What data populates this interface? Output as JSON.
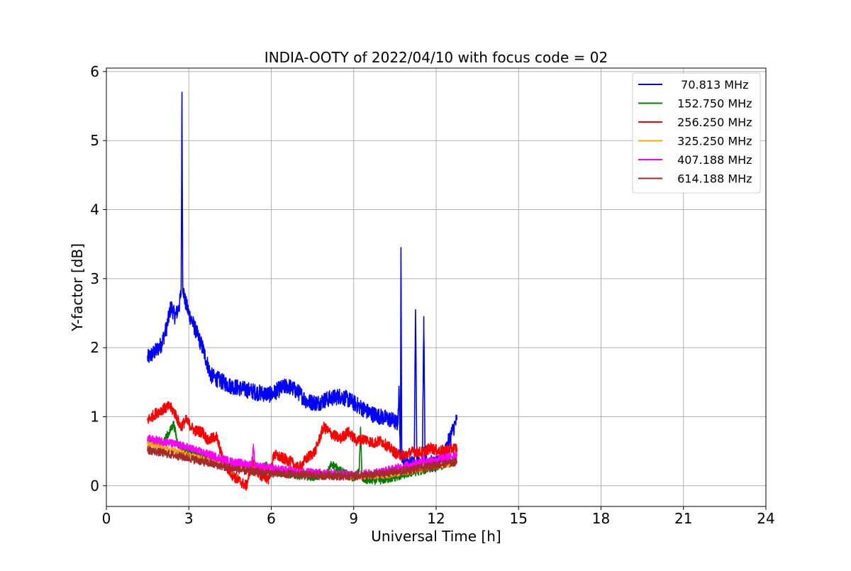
{
  "chart_data": {
    "type": "line",
    "title": "INDIA-OOTY of 2022/04/10 with focus code = 02",
    "xlabel": "Universal Time [h]",
    "ylabel": "Y-factor [dB]",
    "xlim": [
      0,
      24
    ],
    "ylim": [
      -0.3,
      6.05
    ],
    "xticks": [
      0,
      3,
      6,
      9,
      12,
      15,
      18,
      21,
      24
    ],
    "xtick_labels": [
      "0",
      "3",
      "6",
      "9",
      "12",
      "15",
      "18",
      "21",
      "24"
    ],
    "yticks": [
      0,
      1,
      2,
      3,
      4,
      5,
      6
    ],
    "ytick_labels": [
      "0",
      "1",
      "2",
      "3",
      "4",
      "5",
      "6"
    ],
    "grid": true,
    "legend_position": "top-right",
    "series": [
      {
        "name": "  70.813 MHz",
        "color": "#0000ff",
        "band": 0.12,
        "x": [
          1.5,
          1.8,
          2.0,
          2.2,
          2.35,
          2.5,
          2.65,
          2.72,
          2.75,
          2.78,
          2.85,
          3.0,
          3.3,
          3.5,
          3.8,
          4.0,
          4.5,
          5.0,
          5.5,
          6.0,
          6.3,
          6.6,
          7.0,
          7.3,
          7.7,
          8.0,
          8.5,
          8.8,
          9.2,
          9.6,
          10.0,
          10.4,
          10.6,
          10.65,
          10.7,
          10.72,
          10.75,
          10.9,
          11.2,
          11.25,
          11.3,
          11.5,
          11.55,
          11.6,
          12.0,
          12.3,
          12.5,
          12.75
        ],
        "y": [
          1.85,
          1.95,
          2.05,
          2.3,
          2.6,
          2.45,
          2.6,
          2.8,
          5.7,
          2.9,
          2.7,
          2.5,
          2.2,
          2.0,
          1.6,
          1.55,
          1.45,
          1.4,
          1.35,
          1.32,
          1.4,
          1.45,
          1.35,
          1.22,
          1.2,
          1.25,
          1.3,
          1.25,
          1.15,
          1.05,
          1.0,
          0.95,
          0.9,
          1.4,
          0.4,
          3.45,
          0.45,
          0.35,
          0.3,
          2.55,
          0.35,
          0.3,
          2.45,
          0.35,
          0.3,
          0.45,
          0.7,
          0.95
        ]
      },
      {
        "name": " 152.750 MHz",
        "color": "#008000",
        "band": 0.06,
        "x": [
          1.5,
          2.0,
          2.3,
          2.45,
          2.6,
          3.0,
          3.5,
          4.0,
          4.5,
          5.0,
          5.5,
          5.8,
          6.0,
          6.5,
          7.0,
          7.5,
          8.0,
          8.2,
          8.5,
          9.0,
          9.2,
          9.25,
          9.3,
          9.5,
          10.0,
          10.5,
          11.0,
          11.5,
          12.0,
          12.5,
          12.75
        ],
        "y": [
          0.65,
          0.6,
          0.78,
          0.9,
          0.6,
          0.5,
          0.42,
          0.35,
          0.28,
          0.25,
          0.22,
          0.3,
          0.2,
          0.18,
          0.15,
          0.13,
          0.15,
          0.32,
          0.22,
          0.12,
          0.2,
          0.85,
          0.1,
          0.08,
          0.08,
          0.12,
          0.18,
          0.22,
          0.28,
          0.32,
          0.35
        ]
      },
      {
        "name": " 256.250 MHz",
        "color": "#ff0000",
        "band": 0.08,
        "x": [
          1.5,
          1.8,
          2.0,
          2.3,
          2.5,
          2.7,
          2.9,
          3.2,
          3.5,
          3.7,
          4.0,
          4.3,
          4.6,
          4.9,
          5.1,
          5.3,
          5.6,
          5.9,
          6.1,
          6.4,
          6.7,
          7.0,
          7.3,
          7.6,
          7.9,
          8.2,
          8.5,
          8.8,
          9.1,
          9.4,
          9.7,
          10.0,
          10.3,
          10.6,
          10.9,
          11.2,
          11.5,
          11.8,
          12.1,
          12.4,
          12.75
        ],
        "y": [
          0.95,
          1.05,
          1.1,
          1.15,
          1.05,
          0.85,
          0.95,
          0.8,
          0.78,
          0.65,
          0.72,
          0.3,
          0.15,
          0.05,
          0.0,
          0.35,
          0.15,
          0.1,
          0.45,
          0.4,
          0.35,
          0.25,
          0.4,
          0.5,
          0.85,
          0.75,
          0.68,
          0.78,
          0.65,
          0.68,
          0.62,
          0.65,
          0.55,
          0.45,
          0.45,
          0.5,
          0.48,
          0.55,
          0.5,
          0.52,
          0.55
        ]
      },
      {
        "name": " 325.250 MHz",
        "color": "#ffa500",
        "band": 0.04,
        "x": [
          1.5,
          2.0,
          3.0,
          4.0,
          5.0,
          6.0,
          7.0,
          8.0,
          9.0,
          10.0,
          11.0,
          12.0,
          12.75
        ],
        "y": [
          0.62,
          0.57,
          0.45,
          0.33,
          0.26,
          0.22,
          0.18,
          0.15,
          0.13,
          0.14,
          0.2,
          0.28,
          0.34
        ]
      },
      {
        "name": " 407.188 MHz",
        "color": "#ff00ff",
        "band": 0.06,
        "x": [
          1.5,
          2.0,
          2.5,
          3.0,
          3.5,
          4.0,
          4.5,
          5.0,
          5.3,
          5.35,
          5.4,
          5.5,
          6.0,
          7.0,
          8.0,
          9.0,
          10.0,
          11.0,
          11.5,
          12.0,
          12.5,
          12.75
        ],
        "y": [
          0.68,
          0.65,
          0.6,
          0.55,
          0.48,
          0.42,
          0.35,
          0.32,
          0.3,
          0.6,
          0.3,
          0.28,
          0.25,
          0.2,
          0.18,
          0.16,
          0.2,
          0.3,
          0.35,
          0.38,
          0.42,
          0.45
        ]
      },
      {
        "name": " 614.188 MHz",
        "color": "#a52a2a",
        "band": 0.06,
        "x": [
          1.5,
          2.0,
          2.5,
          3.0,
          3.5,
          4.0,
          4.5,
          5.0,
          5.5,
          6.0,
          6.5,
          7.0,
          7.5,
          8.0,
          8.5,
          9.0,
          9.5,
          10.0,
          10.5,
          11.0,
          11.5,
          12.0,
          12.5,
          12.75
        ],
        "y": [
          0.52,
          0.48,
          0.44,
          0.4,
          0.35,
          0.3,
          0.26,
          0.22,
          0.2,
          0.18,
          0.17,
          0.16,
          0.15,
          0.15,
          0.14,
          0.14,
          0.15,
          0.17,
          0.2,
          0.23,
          0.26,
          0.3,
          0.33,
          0.35
        ]
      }
    ]
  }
}
